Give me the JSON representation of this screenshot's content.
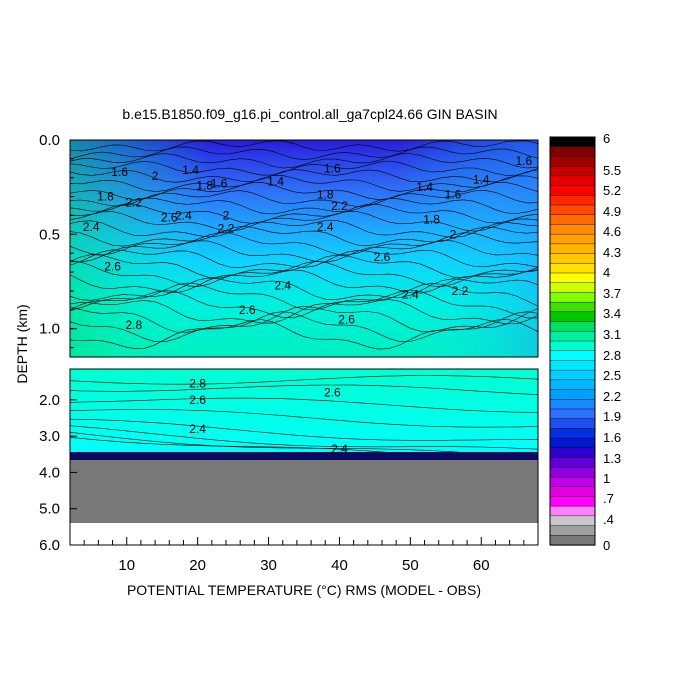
{
  "chart_data": {
    "type": "heatmap",
    "title": "b.e15.B1850.f09_g16.pi_control.all_ga7cpl24.66 GIN BASIN",
    "xlabel": "POTENTIAL TEMPERATURE (°C) RMS (MODEL - OBS)",
    "ylabel": "DEPTH (km)",
    "x_ticks": [
      "10",
      "20",
      "30",
      "40",
      "50",
      "60"
    ],
    "xlim": [
      2,
      68
    ],
    "upper_panel": {
      "ylim": [
        0.0,
        1.15
      ],
      "y_ticks": [
        "0.0",
        "0.5",
        "1.0"
      ]
    },
    "lower_panel": {
      "ylim": [
        1.15,
        6.0
      ],
      "y_ticks": [
        "2.0",
        "3.0",
        "4.0",
        "5.0",
        "6.0"
      ]
    },
    "contour_labels": [
      {
        "value": "1.6",
        "x": 9,
        "depth": 0.17
      },
      {
        "value": "2",
        "x": 14,
        "depth": 0.19
      },
      {
        "value": "1.4",
        "x": 19,
        "depth": 0.16
      },
      {
        "value": "1.8",
        "x": 21,
        "depth": 0.24
      },
      {
        "value": "1.6",
        "x": 23,
        "depth": 0.23
      },
      {
        "value": "1.8",
        "x": 7,
        "depth": 0.3
      },
      {
        "value": "2.2",
        "x": 11,
        "depth": 0.33
      },
      {
        "value": "2.6",
        "x": 16,
        "depth": 0.41
      },
      {
        "value": "2.4",
        "x": 18,
        "depth": 0.4
      },
      {
        "value": "2",
        "x": 24,
        "depth": 0.4
      },
      {
        "value": "2.2",
        "x": 24,
        "depth": 0.47
      },
      {
        "value": "1.4",
        "x": 31,
        "depth": 0.22
      },
      {
        "value": "1.6",
        "x": 39,
        "depth": 0.15
      },
      {
        "value": "1.8",
        "x": 38,
        "depth": 0.29
      },
      {
        "value": "2.2",
        "x": 40,
        "depth": 0.35
      },
      {
        "value": "2.4",
        "x": 38,
        "depth": 0.46
      },
      {
        "value": "2.6",
        "x": 46,
        "depth": 0.62
      },
      {
        "value": "1.4",
        "x": 52,
        "depth": 0.25
      },
      {
        "value": "1.6",
        "x": 56,
        "depth": 0.29
      },
      {
        "value": "1.4",
        "x": 60,
        "depth": 0.21
      },
      {
        "value": "1.8",
        "x": 53,
        "depth": 0.42
      },
      {
        "value": "2",
        "x": 56,
        "depth": 0.5
      },
      {
        "value": "1.6",
        "x": 66,
        "depth": 0.11
      },
      {
        "value": "2.4",
        "x": 5,
        "depth": 0.46
      },
      {
        "value": "2.6",
        "x": 8,
        "depth": 0.67
      },
      {
        "value": "2.8",
        "x": 11,
        "depth": 0.98
      },
      {
        "value": "2.4",
        "x": 32,
        "depth": 0.77
      },
      {
        "value": "2.6",
        "x": 27,
        "depth": 0.9
      },
      {
        "value": "2.6",
        "x": 41,
        "depth": 0.95
      },
      {
        "value": "2.4",
        "x": 50,
        "depth": 0.82
      },
      {
        "value": "2.2",
        "x": 57,
        "depth": 0.8
      },
      {
        "value": "2.8",
        "x": 20,
        "depth": 1.55
      },
      {
        "value": "2.6",
        "x": 20,
        "depth": 2.0
      },
      {
        "value": "2.6",
        "x": 39,
        "depth": 1.8
      },
      {
        "value": "2.4",
        "x": 20,
        "depth": 2.8
      },
      {
        "value": "2.4",
        "x": 40,
        "depth": 3.35
      }
    ],
    "colorbar": {
      "labels": [
        "6",
        "5.5",
        "5.2",
        "4.9",
        "4.6",
        "4.3",
        "4",
        "3.7",
        "3.4",
        "3.1",
        "2.8",
        "2.5",
        "2.2",
        "1.9",
        "1.6",
        "1.3",
        "1",
        ".7",
        ".4",
        "0"
      ],
      "colors": [
        "#000000",
        "#800000",
        "#a00000",
        "#c80000",
        "#e60000",
        "#ff0000",
        "#ff2600",
        "#ff4a00",
        "#ff6b00",
        "#ff8c00",
        "#ffa000",
        "#ffb400",
        "#ffc800",
        "#ffe000",
        "#ffff00",
        "#d0ff00",
        "#80ff00",
        "#40e000",
        "#00c800",
        "#00e060",
        "#00f0a0",
        "#00ffd0",
        "#00ffff",
        "#00e8ff",
        "#00d0ff",
        "#00b8ff",
        "#00a0ff",
        "#1888ff",
        "#3070ff",
        "#2050f0",
        "#0030e0",
        "#0018d0",
        "#3000d0",
        "#6000d8",
        "#9000e0",
        "#c000e8",
        "#e000e0",
        "#ff00ff",
        "#ff80ff",
        "#c8c8c8",
        "#a0a0a0",
        "#787878"
      ]
    },
    "land_color": "#787878"
  }
}
